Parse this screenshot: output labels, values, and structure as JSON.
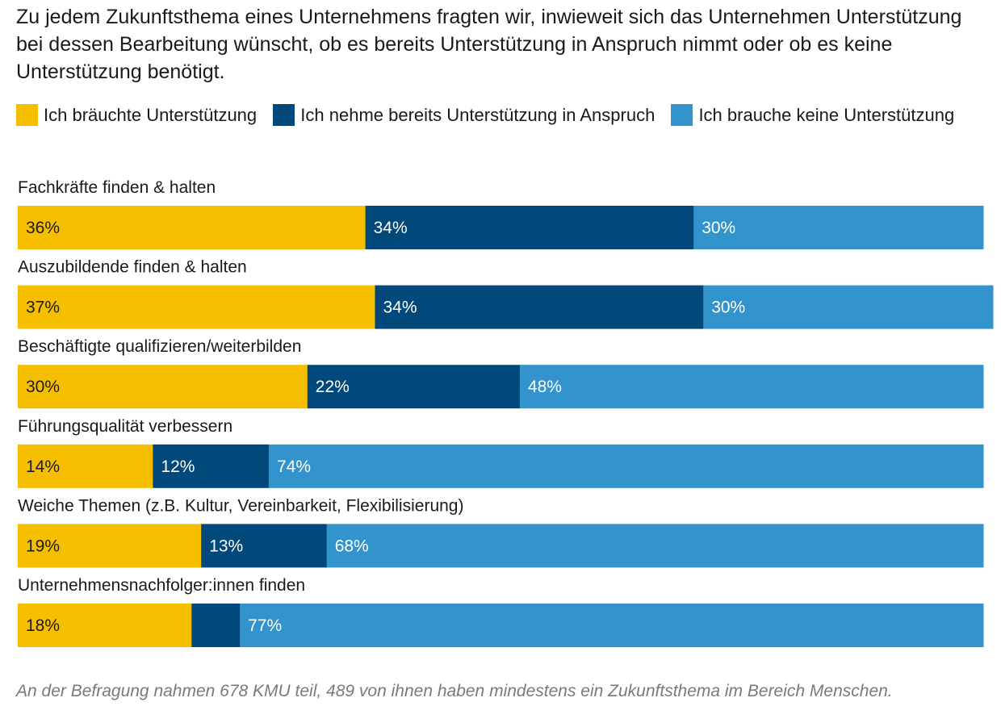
{
  "title": "Zu jedem Zukunftsthema eines Unternehmens fragten wir, inwieweit sich das Unternehmen Unterstützung bei dessen Bearbeitung wünscht, ob es bereits Unterstützung in Anspruch nimmt oder ob es keine Unterstützung benötigt.",
  "note": "An der Befragung nahmen 678 KMU teil, 489 von ihnen haben mindestens ein Zukunftsthema im Bereich Menschen.",
  "chart_data": {
    "type": "bar",
    "orientation": "horizontal",
    "stacked": true,
    "unit": "%",
    "categories": [
      "Fachkräfte finden & halten",
      "Auszubildende finden & halten",
      "Beschäftigte qualifizieren/weiterbilden",
      "Führungsqualität verbessern",
      "Weiche Themen (z.B. Kultur, Vereinbarkeit, Flexibilisierung)",
      "Unternehmensnachfolger:innen finden"
    ],
    "series": [
      {
        "name": "Ich bräuchte Unterstützung",
        "color": "#f5bf00",
        "label_color": "#1a1a1a",
        "values": [
          36,
          37,
          30,
          14,
          19,
          18
        ],
        "labels": [
          "36%",
          "37%",
          "30%",
          "14%",
          "19%",
          "18%"
        ]
      },
      {
        "name": "Ich nehme bereits Unterstützung in Anspruch",
        "color": "#00497a",
        "label_color": "#ffffff",
        "values": [
          34,
          34,
          22,
          12,
          13,
          5
        ],
        "labels": [
          "34%",
          "34%",
          "22%",
          "12%",
          "13%",
          ""
        ]
      },
      {
        "name": "Ich brauche keine Unterstützung",
        "color": "#3393cc",
        "label_color": "#ffffff",
        "values": [
          30,
          30,
          48,
          74,
          68,
          77
        ],
        "labels": [
          "30%",
          "30%",
          "48%",
          "74%",
          "68%",
          "77%"
        ]
      }
    ],
    "xlim": [
      0,
      100
    ],
    "legend_position": "top"
  }
}
